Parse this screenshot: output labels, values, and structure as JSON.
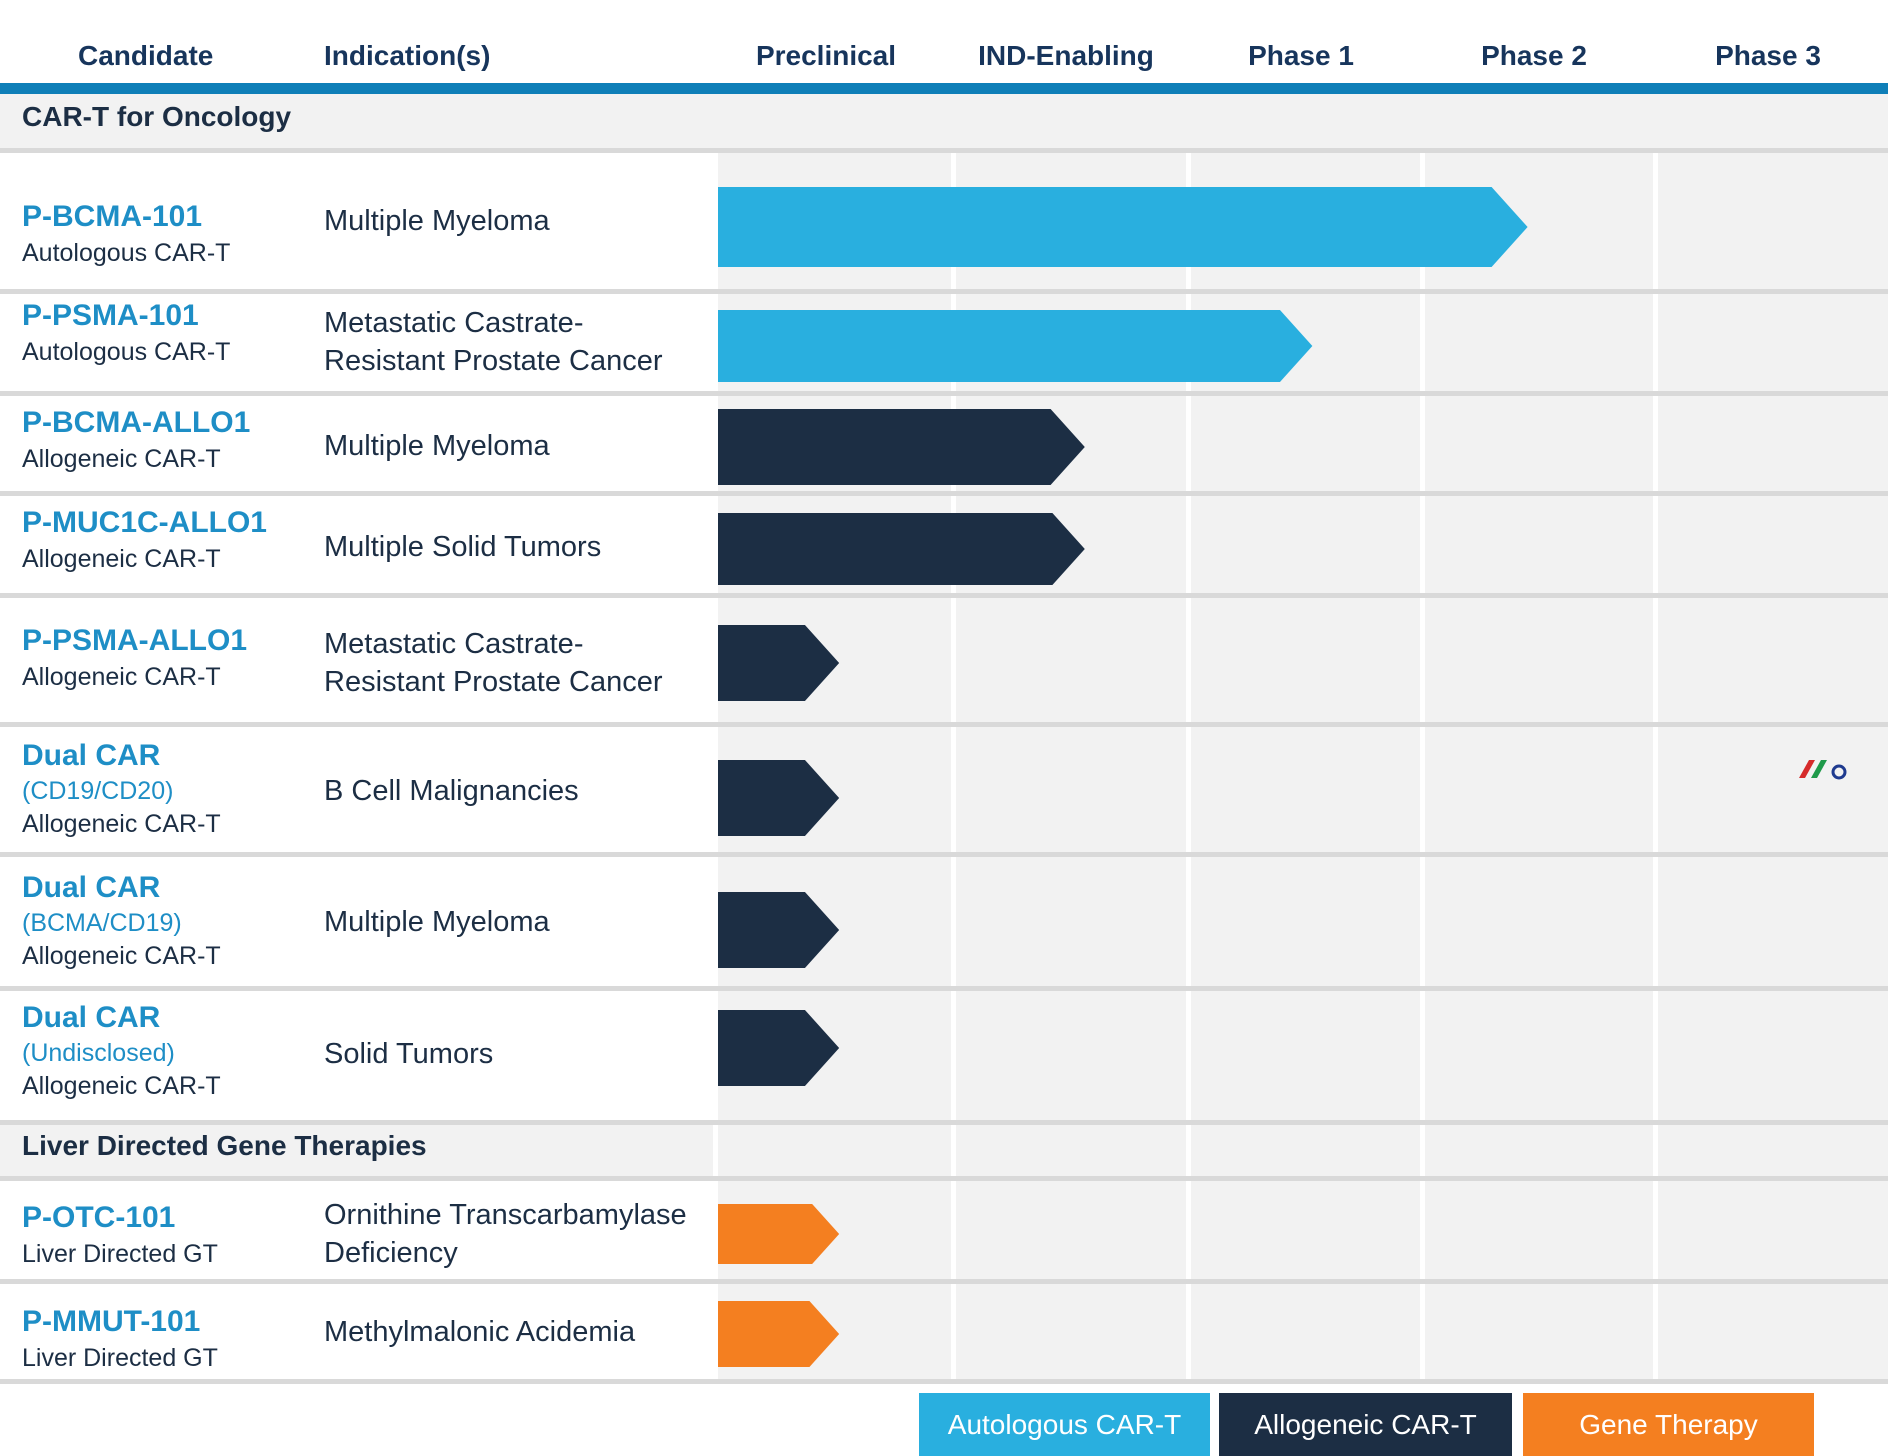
{
  "headers": {
    "candidate": "Candidate",
    "indications": "Indication(s)",
    "phases": [
      "Preclinical",
      "IND-Enabling",
      "Phase 1",
      "Phase 2",
      "Phase 3"
    ]
  },
  "sections": [
    {
      "title": "CAR-T for Oncology",
      "rows": [
        {
          "name": "P-BCMA-101",
          "target": "",
          "type": "Autologous CAR-T",
          "indication_lines": [
            "Multiple Myeloma"
          ],
          "category": "Autologous CAR-T",
          "progress": 3.45
        },
        {
          "name": "P-PSMA-101",
          "target": "",
          "type": "Autologous CAR-T",
          "indication_lines": [
            "Metastatic Castrate-",
            "Resistant Prostate Cancer"
          ],
          "category": "Autologous CAR-T",
          "progress": 2.53
        },
        {
          "name": "P-BCMA-ALLO1",
          "target": "",
          "type": "Allogeneic CAR-T",
          "indication_lines": [
            "Multiple Myeloma"
          ],
          "category": "Allogeneic CAR-T",
          "progress": 1.56
        },
        {
          "name": "P-MUC1C-ALLO1",
          "target": "",
          "type": "Allogeneic CAR-T",
          "indication_lines": [
            "Multiple Solid Tumors"
          ],
          "category": "Allogeneic CAR-T",
          "progress": 1.56
        },
        {
          "name": "P-PSMA-ALLO1",
          "target": "",
          "type": "Allogeneic CAR-T",
          "indication_lines": [
            "Metastatic Castrate-",
            "Resistant Prostate Cancer"
          ],
          "category": "Allogeneic CAR-T",
          "progress": 0.52
        },
        {
          "name": "Dual CAR",
          "target": "(CD19/CD20)",
          "type": "Allogeneic CAR-T",
          "indication_lines": [
            "B Cell Malignancies"
          ],
          "category": "Allogeneic CAR-T",
          "progress": 0.52
        },
        {
          "name": "Dual CAR",
          "target": "(BCMA/CD19)",
          "type": "Allogeneic CAR-T",
          "indication_lines": [
            "Multiple Myeloma"
          ],
          "category": "Allogeneic CAR-T",
          "progress": 0.52
        },
        {
          "name": "Dual CAR",
          "target": "(Undisclosed)",
          "type": "Allogeneic CAR-T",
          "indication_lines": [
            "Solid Tumors"
          ],
          "category": "Allogeneic CAR-T",
          "progress": 0.52
        }
      ]
    },
    {
      "title": "Liver Directed Gene Therapies",
      "rows": [
        {
          "name": "P-OTC-101",
          "target": "",
          "type": "Liver Directed GT",
          "indication_lines": [
            "Ornithine Transcarbamylase",
            "Deficiency"
          ],
          "category": "Gene Therapy",
          "progress": 0.52
        },
        {
          "name": "P-MMUT-101",
          "target": "",
          "type": "Liver Directed GT",
          "indication_lines": [
            "Methylmalonic Acidemia"
          ],
          "category": "Gene Therapy",
          "progress": 0.52
        }
      ]
    }
  ],
  "legend": [
    {
      "label": "Autologous CAR-T",
      "color": "#29afdf"
    },
    {
      "label": "Allogeneic CAR-T",
      "color": "#1c2e44"
    },
    {
      "label": "Gene Therapy",
      "color": "#f47f20"
    }
  ],
  "colors": {
    "header_rule": "#0f7fb8",
    "section_band": "#f2f2f2",
    "phase_band": "#f2f2f2",
    "row_divider": "#d9d9d9",
    "candidate_name": "#1e8ec6",
    "heading_text": "#17355c",
    "body_text": "#1c2e44"
  },
  "logo_icon": "company-logo-icon",
  "chart_data": {
    "type": "bar",
    "orientation": "horizontal",
    "categories": [
      "P-BCMA-101",
      "P-PSMA-101",
      "P-BCMA-ALLO1",
      "P-MUC1C-ALLO1",
      "P-PSMA-ALLO1",
      "Dual CAR (CD19/CD20)",
      "Dual CAR (BCMA/CD19)",
      "Dual CAR (Undisclosed)",
      "P-OTC-101",
      "P-MMUT-101"
    ],
    "series": [
      {
        "name": "Autologous CAR-T",
        "values": [
          3.45,
          2.53,
          null,
          null,
          null,
          null,
          null,
          null,
          null,
          null
        ]
      },
      {
        "name": "Allogeneic CAR-T",
        "values": [
          null,
          null,
          1.56,
          1.56,
          0.52,
          0.52,
          0.52,
          0.52,
          null,
          null
        ]
      },
      {
        "name": "Gene Therapy",
        "values": [
          null,
          null,
          null,
          null,
          null,
          null,
          null,
          null,
          0.52,
          0.52
        ]
      }
    ],
    "xlabel": "",
    "ylabel": "",
    "x_stages": [
      "Preclinical",
      "IND-Enabling",
      "Phase 1",
      "Phase 2",
      "Phase 3"
    ],
    "xlim": [
      0,
      5
    ],
    "grid": true,
    "legend_position": "bottom-right"
  }
}
